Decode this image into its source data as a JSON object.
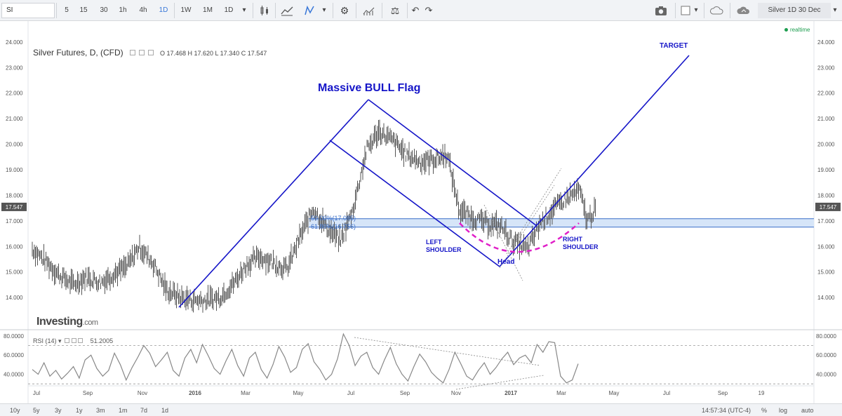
{
  "toolbar": {
    "symbol": "SI",
    "intervals": [
      "5",
      "15",
      "30",
      "1h",
      "4h",
      "1D",
      "1W",
      "1M",
      "1D"
    ],
    "active_interval": "1D",
    "chart_title": "Silver 1D 30 Dec"
  },
  "legend": {
    "title": "Silver Futures, D, (CFD)",
    "ohlc": "O 17.468  H 17.620  L 17.340  C 17.547",
    "realtime": "realtime"
  },
  "rsi_legend": {
    "name": "RSI (14)",
    "value": "51.2005"
  },
  "logo": {
    "main": "Investing",
    "suffix": ".com"
  },
  "annotations": {
    "bull_flag": "Massive BULL Flag",
    "target": "TARGET",
    "left_shoulder_1": "LEFT",
    "left_shoulder_2": "SHOULDER",
    "right_shoulder_1": "RIGHT",
    "right_shoulder_2": "SHOULDER",
    "head": "Head",
    "fib_50": "50.00%(17.085)",
    "fib_618": "61.80%(16.756)"
  },
  "current_price": "17.547",
  "bottombar": {
    "ranges": [
      "10y",
      "5y",
      "3y",
      "1y",
      "3m",
      "1m",
      "7d",
      "1d"
    ],
    "time": "14:57:34 (UTC-4)",
    "options": [
      "%",
      "log",
      "auto"
    ]
  },
  "colors": {
    "accent": "#1515c8",
    "fib_band": "#d6e5f8",
    "fib_line": "#3a6fc8",
    "head_arc": "#e020c8",
    "price": "#555555"
  },
  "chart_data": [
    {
      "type": "line",
      "title": "Silver Futures, D, (CFD)",
      "ylim": [
        13.4,
        24.4
      ],
      "yticks": [
        14.0,
        15.0,
        16.0,
        17.0,
        18.0,
        19.0,
        20.0,
        21.0,
        22.0,
        23.0,
        24.0
      ],
      "xticks": [
        "Jul",
        "Sep",
        "Nov",
        "2016",
        "Mar",
        "May",
        "Jul",
        "Sep",
        "Nov",
        "2017",
        "Mar",
        "May",
        "Jul",
        "Sep",
        "19"
      ],
      "series": [
        {
          "x": [
            "2015-06-15",
            "2015-07-01",
            "2015-07-15",
            "2015-08-01",
            "2015-08-15",
            "2015-09-01",
            "2015-09-15",
            "2015-10-01",
            "2015-10-15",
            "2015-11-01",
            "2015-11-15",
            "2015-12-01",
            "2015-12-15",
            "2016-01-01",
            "2016-01-15",
            "2016-02-01",
            "2016-02-15",
            "2016-03-01",
            "2016-03-15",
            "2016-04-01",
            "2016-04-15",
            "2016-05-01",
            "2016-05-15",
            "2016-06-01",
            "2016-06-15",
            "2016-07-01",
            "2016-07-15",
            "2016-08-01",
            "2016-08-15",
            "2016-09-01",
            "2016-09-15",
            "2016-10-01",
            "2016-10-15",
            "2016-11-01",
            "2016-11-15",
            "2016-12-01",
            "2016-12-15",
            "2017-01-01",
            "2017-01-15",
            "2017-02-01",
            "2017-02-15",
            "2017-03-01",
            "2017-03-10",
            "2017-03-20"
          ],
          "values": [
            15.9,
            15.4,
            14.9,
            14.5,
            14.8,
            14.6,
            14.9,
            15.2,
            16.0,
            15.3,
            14.3,
            14.0,
            13.9,
            13.9,
            14.0,
            14.6,
            15.3,
            15.6,
            15.4,
            15.1,
            16.3,
            17.5,
            16.8,
            16.2,
            17.4,
            19.8,
            20.5,
            20.1,
            19.6,
            19.3,
            19.4,
            19.6,
            17.4,
            17.1,
            16.9,
            16.8,
            16.2,
            15.9,
            16.9,
            17.5,
            17.9,
            18.2,
            17.0,
            17.5
          ]
        }
      ],
      "fib_levels": [
        {
          "label": "50.00%",
          "value": 17.085
        },
        {
          "label": "61.80%",
          "value": 16.756
        }
      ],
      "last_value": 17.547
    },
    {
      "type": "line",
      "title": "RSI (14)",
      "ylim": [
        25,
        85
      ],
      "yticks": [
        40.0,
        60.0,
        80.0
      ],
      "bands": [
        30,
        70
      ],
      "series": [
        {
          "name": "RSI (14)",
          "values": [
            45,
            40,
            52,
            38,
            44,
            35,
            41,
            48,
            36,
            55,
            60,
            46,
            38,
            44,
            62,
            50,
            34,
            47,
            58,
            70,
            62,
            48,
            55,
            63,
            44,
            38,
            57,
            66,
            52,
            71,
            59,
            46,
            40,
            54,
            66,
            49,
            38,
            57,
            63,
            45,
            36,
            50,
            69,
            58,
            42,
            47,
            66,
            72,
            53,
            45,
            34,
            40,
            56,
            82,
            70,
            49,
            59,
            63,
            47,
            40,
            55,
            68,
            51,
            40,
            33,
            48,
            61,
            53,
            42,
            36,
            31,
            45,
            63,
            51,
            38,
            34,
            44,
            52,
            40,
            47,
            56,
            63,
            50,
            57,
            60,
            52,
            71,
            63,
            74,
            73,
            38,
            31,
            34,
            51
          ]
        }
      ],
      "last_value": 51.2005
    }
  ]
}
